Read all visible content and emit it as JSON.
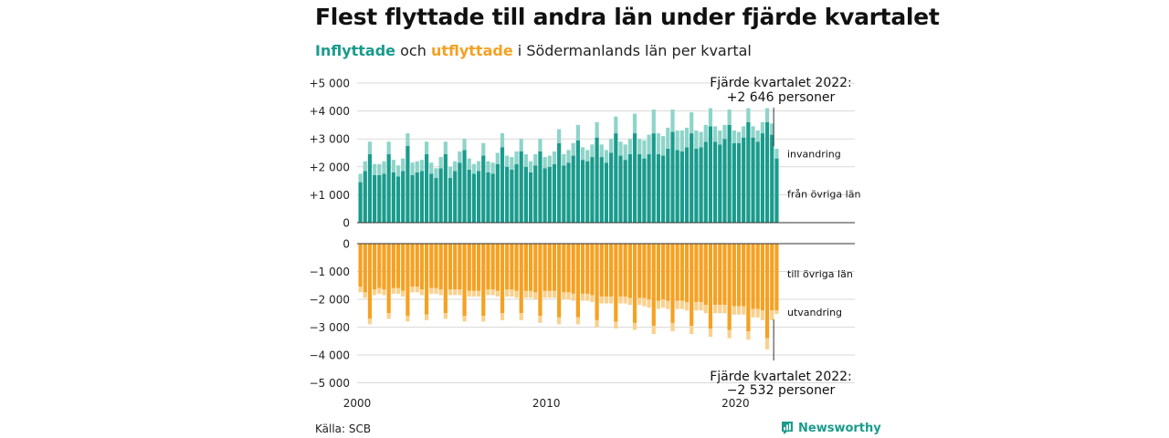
{
  "title": "Flest flyttade till andra län under fjärde kvartalet",
  "subtitle": {
    "inflow_word": "Inflyttade",
    "and_word": "och",
    "outflow_word": "utflyttade",
    "rest": "i Södermanlands län per kvartal"
  },
  "source": "Källa: SCB",
  "brand": "Newsworthy",
  "colors": {
    "inflow_dark": "#1a9b8c",
    "inflow_light": "#8ed4c9",
    "outflow_dark": "#f5a122",
    "outflow_light": "#f9d18e",
    "grid": "#d9d9d9"
  },
  "chart_data": [
    {
      "type": "bar",
      "stacked": true,
      "panel": "inflyttade",
      "x_start": "2000 Q1",
      "frequency": "quarterly",
      "ylim": [
        0,
        5000
      ],
      "yticks": [
        0,
        1000,
        2000,
        3000,
        4000,
        5000
      ],
      "ytick_labels": [
        "0",
        "+1 000",
        "+2 000",
        "+3 000",
        "+4 000",
        "+5 000"
      ],
      "grid": true,
      "series": [
        {
          "name": "från övriga län",
          "values": [
            1450,
            1850,
            2450,
            1700,
            1700,
            1750,
            2450,
            1800,
            1650,
            1850,
            2750,
            1700,
            1800,
            1850,
            2450,
            1750,
            1600,
            1950,
            2450,
            1600,
            1850,
            2150,
            2600,
            1900,
            1750,
            1850,
            2400,
            1800,
            1750,
            2100,
            2700,
            2000,
            1900,
            2100,
            2550,
            2000,
            1800,
            2050,
            2550,
            1950,
            2000,
            2100,
            2850,
            2050,
            2150,
            2400,
            2950,
            2250,
            2200,
            2350,
            3050,
            2350,
            2150,
            2500,
            3200,
            2400,
            2250,
            2450,
            3200,
            2450,
            2300,
            2450,
            3200,
            2450,
            2400,
            2650,
            3250,
            2600,
            2550,
            2700,
            3200,
            2650,
            2700,
            2900,
            3450,
            2900,
            2800,
            3000,
            3500,
            2850,
            2850,
            3050,
            3600,
            3050,
            2900,
            3200,
            3600,
            3150,
            2300
          ]
        },
        {
          "name": "invandring",
          "values": [
            300,
            350,
            450,
            400,
            400,
            450,
            450,
            450,
            400,
            450,
            450,
            450,
            400,
            400,
            450,
            400,
            350,
            400,
            450,
            400,
            350,
            400,
            400,
            400,
            350,
            350,
            450,
            400,
            400,
            400,
            500,
            400,
            450,
            450,
            450,
            450,
            400,
            400,
            450,
            400,
            400,
            450,
            500,
            400,
            450,
            450,
            550,
            450,
            400,
            450,
            550,
            450,
            450,
            500,
            600,
            500,
            550,
            550,
            700,
            550,
            650,
            700,
            850,
            750,
            700,
            750,
            800,
            700,
            750,
            700,
            750,
            650,
            550,
            600,
            650,
            550,
            500,
            500,
            550,
            450,
            400,
            400,
            500,
            400,
            400,
            400,
            500,
            400,
            346
          ]
        }
      ],
      "annotation": {
        "title": "Fjärde kvartalet 2022:",
        "value": "+2 646 personer"
      }
    },
    {
      "type": "bar",
      "stacked": true,
      "panel": "utflyttade",
      "x_start": "2000 Q1",
      "frequency": "quarterly",
      "ylim": [
        -5000,
        0
      ],
      "yticks": [
        0,
        -1000,
        -2000,
        -3000,
        -4000,
        -5000
      ],
      "ytick_labels": [
        "0",
        "−1 000",
        "−2 000",
        "−3 000",
        "−4 000",
        "−5 000"
      ],
      "xticks": [
        2000,
        2010,
        2020
      ],
      "xtick_labels": [
        "2000",
        "2010",
        "2020"
      ],
      "grid": true,
      "series": [
        {
          "name": "till övriga län",
          "values": [
            -1550,
            -1750,
            -2700,
            -1650,
            -1600,
            -1650,
            -2500,
            -1600,
            -1600,
            -1700,
            -2600,
            -1550,
            -1550,
            -1650,
            -2550,
            -1600,
            -1600,
            -1650,
            -2500,
            -1650,
            -1650,
            -1650,
            -2600,
            -1700,
            -1700,
            -1700,
            -2600,
            -1650,
            -1650,
            -1700,
            -2500,
            -1650,
            -1650,
            -1700,
            -2500,
            -1700,
            -1700,
            -1750,
            -2600,
            -1700,
            -1700,
            -1700,
            -2650,
            -1750,
            -1750,
            -1800,
            -2650,
            -1800,
            -1800,
            -1850,
            -2750,
            -1900,
            -1900,
            -1900,
            -2800,
            -1900,
            -1900,
            -1950,
            -2850,
            -1950,
            -1950,
            -2000,
            -2950,
            -2050,
            -2000,
            -2050,
            -2850,
            -2050,
            -2050,
            -2100,
            -2950,
            -2100,
            -2100,
            -2200,
            -3050,
            -2200,
            -2200,
            -2200,
            -3100,
            -2250,
            -2250,
            -2250,
            -3150,
            -2350,
            -2350,
            -2400,
            -3400,
            -2400,
            -2400
          ]
        },
        {
          "name": "utvandring",
          "values": [
            -200,
            -200,
            -200,
            -200,
            -200,
            -200,
            -200,
            -200,
            -200,
            -200,
            -200,
            -200,
            -200,
            -200,
            -200,
            -200,
            -200,
            -200,
            -200,
            -200,
            -200,
            -200,
            -200,
            -200,
            -200,
            -200,
            -200,
            -200,
            -200,
            -200,
            -250,
            -250,
            -250,
            -250,
            -250,
            -250,
            -250,
            -250,
            -250,
            -250,
            -250,
            -250,
            -250,
            -250,
            -250,
            -250,
            -250,
            -250,
            -250,
            -250,
            -250,
            -250,
            -250,
            -250,
            -250,
            -250,
            -250,
            -250,
            -250,
            -250,
            -300,
            -300,
            -300,
            -300,
            -300,
            -300,
            -300,
            -300,
            -300,
            -300,
            -300,
            -300,
            -300,
            -300,
            -300,
            -300,
            -300,
            -300,
            -300,
            -300,
            -300,
            -300,
            -300,
            -300,
            -300,
            -350,
            -400,
            -350,
            -132
          ]
        }
      ],
      "annotation": {
        "title": "Fjärde kvartalet 2022:",
        "value": "−2 532 personer"
      }
    }
  ]
}
